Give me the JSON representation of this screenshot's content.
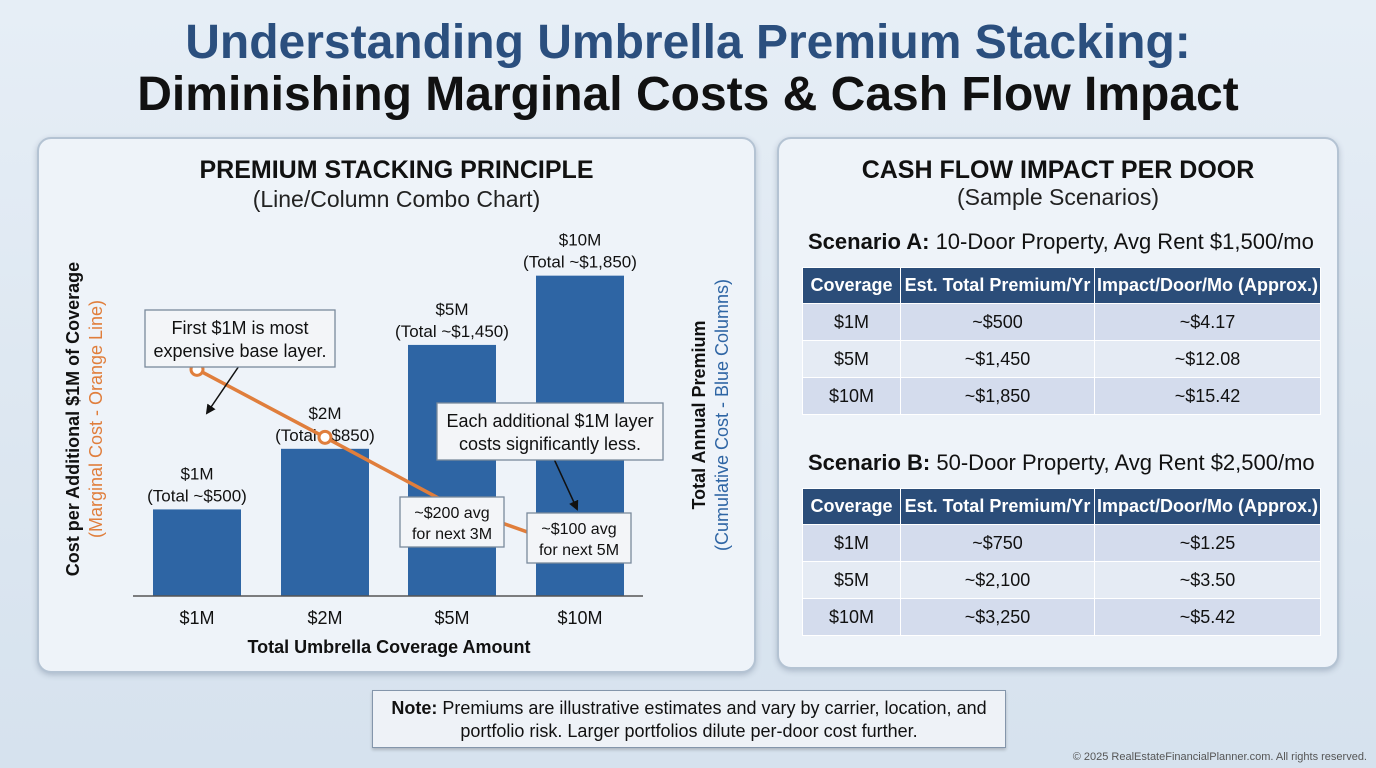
{
  "title_line1": "Understanding Umbrella Premium Stacking:",
  "title_line2": "Diminishing Marginal Costs & Cash Flow Impact",
  "left_panel": {
    "title": "PREMIUM STACKING PRINCIPLE",
    "subtitle": "(Line/Column Combo Chart)",
    "callout_top_1": "First $1M is most",
    "callout_top_2": "expensive base layer.",
    "callout_mid_1": "Each additional $1M layer",
    "callout_mid_2": "costs significantly less.",
    "callout_200_1": "~$200 avg",
    "callout_200_2": "for next 3M",
    "callout_100_1": "~$100 avg",
    "callout_100_2": "for next 5M"
  },
  "chart_data": {
    "type": "bar",
    "categories": [
      "$1M",
      "$2M",
      "$5M",
      "$10M"
    ],
    "bar_labels": [
      [
        "$1M",
        "(Total ~$500)"
      ],
      [
        "$2M",
        "(Total ~$850)"
      ],
      [
        "$5M",
        "(Total ~$1,450)"
      ],
      [
        "$10M",
        "(Total ~$1,850)"
      ]
    ],
    "series": [
      {
        "name": "Total Annual Premium (Cumulative Cost - Blue Columns)",
        "kind": "column",
        "axis": "right",
        "values": [
          500,
          850,
          1450,
          1850
        ],
        "color": "#2e65a4"
      },
      {
        "name": "Cost per Additional $1M of Coverage (Marginal Cost - Orange Line)",
        "kind": "line",
        "axis": "left",
        "values": [
          500,
          350,
          200,
          100
        ],
        "color": "#e07e3c"
      }
    ],
    "xlabel": "Total Umbrella Coverage Amount",
    "ylabel_left": "Cost per Additional $1M of Coverage",
    "ylabel_left_sub": "(Marginal Cost - Orange Line)",
    "ylabel_right": "Total Annual Premium",
    "ylabel_right_sub": "(Cumulative Cost - Blue Columns)",
    "ylim_right": [
      0,
      1900
    ],
    "ylim_left": [
      0,
      600
    ]
  },
  "right_panel": {
    "title": "CASH FLOW IMPACT PER DOOR",
    "subtitle": "(Sample Scenarios)",
    "scenario_a": {
      "label": "Scenario A:",
      "desc": " 10-Door Property, Avg Rent $1,500/mo",
      "headers": [
        "Coverage",
        "Est. Total Premium/Yr",
        "Impact/Door/Mo (Approx.)"
      ],
      "rows": [
        [
          "$1M",
          "~$500",
          "~$4.17"
        ],
        [
          "$5M",
          "~$1,450",
          "~$12.08"
        ],
        [
          "$10M",
          "~$1,850",
          "~$15.42"
        ]
      ]
    },
    "scenario_b": {
      "label": "Scenario B:",
      "desc": " 50-Door Property, Avg Rent $2,500/mo",
      "headers": [
        "Coverage",
        "Est. Total Premium/Yr",
        "Impact/Door/Mo (Approx.)"
      ],
      "rows": [
        [
          "$1M",
          "~$750",
          "~$1.25"
        ],
        [
          "$5M",
          "~$2,100",
          "~$3.50"
        ],
        [
          "$10M",
          "~$3,250",
          "~$5.42"
        ]
      ]
    }
  },
  "note": {
    "label": "Note:",
    "line1": " Premiums are illustrative estimates and vary by carrier, location, and",
    "line2": "portfolio risk. Larger portfolios dilute per-door cost further."
  },
  "copyright": "© 2025 RealEstateFinancialPlanner.com. All rights reserved."
}
